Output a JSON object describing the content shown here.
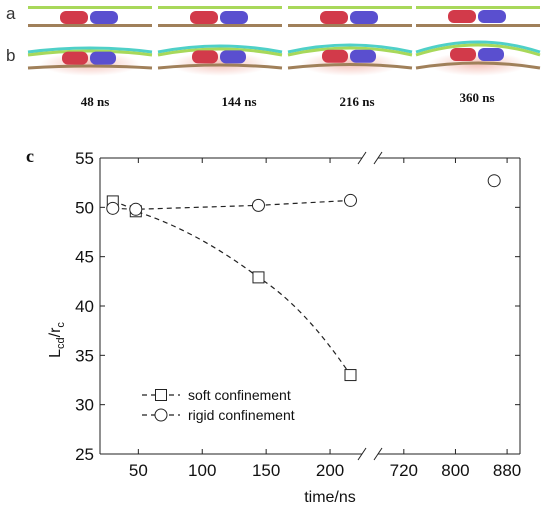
{
  "panels": {
    "a_label": "a",
    "b_label": "b",
    "c_label": "c",
    "times": [
      "48 ns",
      "144 ns",
      "216 ns",
      "360 ns"
    ]
  },
  "colors": {
    "particle_red": "#d23a4a",
    "particle_blue": "#5a4fcf",
    "membrane_green": "#a8d85a",
    "membrane_cyan": "#4fd0c8",
    "substrate_brown": "#a0805a",
    "glow_pink": "#f2b9b0"
  },
  "chart_data": {
    "type": "scatter",
    "xlabel": "time/ns",
    "ylabel_main": "L",
    "ylabel_sub": "cd",
    "ylabel_main2": "/r",
    "ylabel_sub2": "c",
    "ylim": [
      25,
      55
    ],
    "yticks": [
      25,
      30,
      35,
      40,
      45,
      50,
      55
    ],
    "x_segments": [
      {
        "range": [
          20,
          225
        ],
        "ticks": [
          50,
          100,
          150,
          200
        ]
      },
      {
        "range": [
          680,
          900
        ],
        "ticks": [
          720,
          800,
          880
        ]
      }
    ],
    "axis_break": true,
    "series": [
      {
        "name": "soft confinement",
        "marker": "square",
        "x": [
          30,
          48,
          144,
          216
        ],
        "y": [
          50.6,
          49.6,
          42.9,
          33.0
        ]
      },
      {
        "name": "rigid confinement",
        "marker": "circle",
        "x": [
          30,
          48,
          144,
          216,
          860
        ],
        "y": [
          49.9,
          49.8,
          50.2,
          50.7,
          52.7
        ]
      }
    ],
    "legend_position": "bottom-left"
  }
}
